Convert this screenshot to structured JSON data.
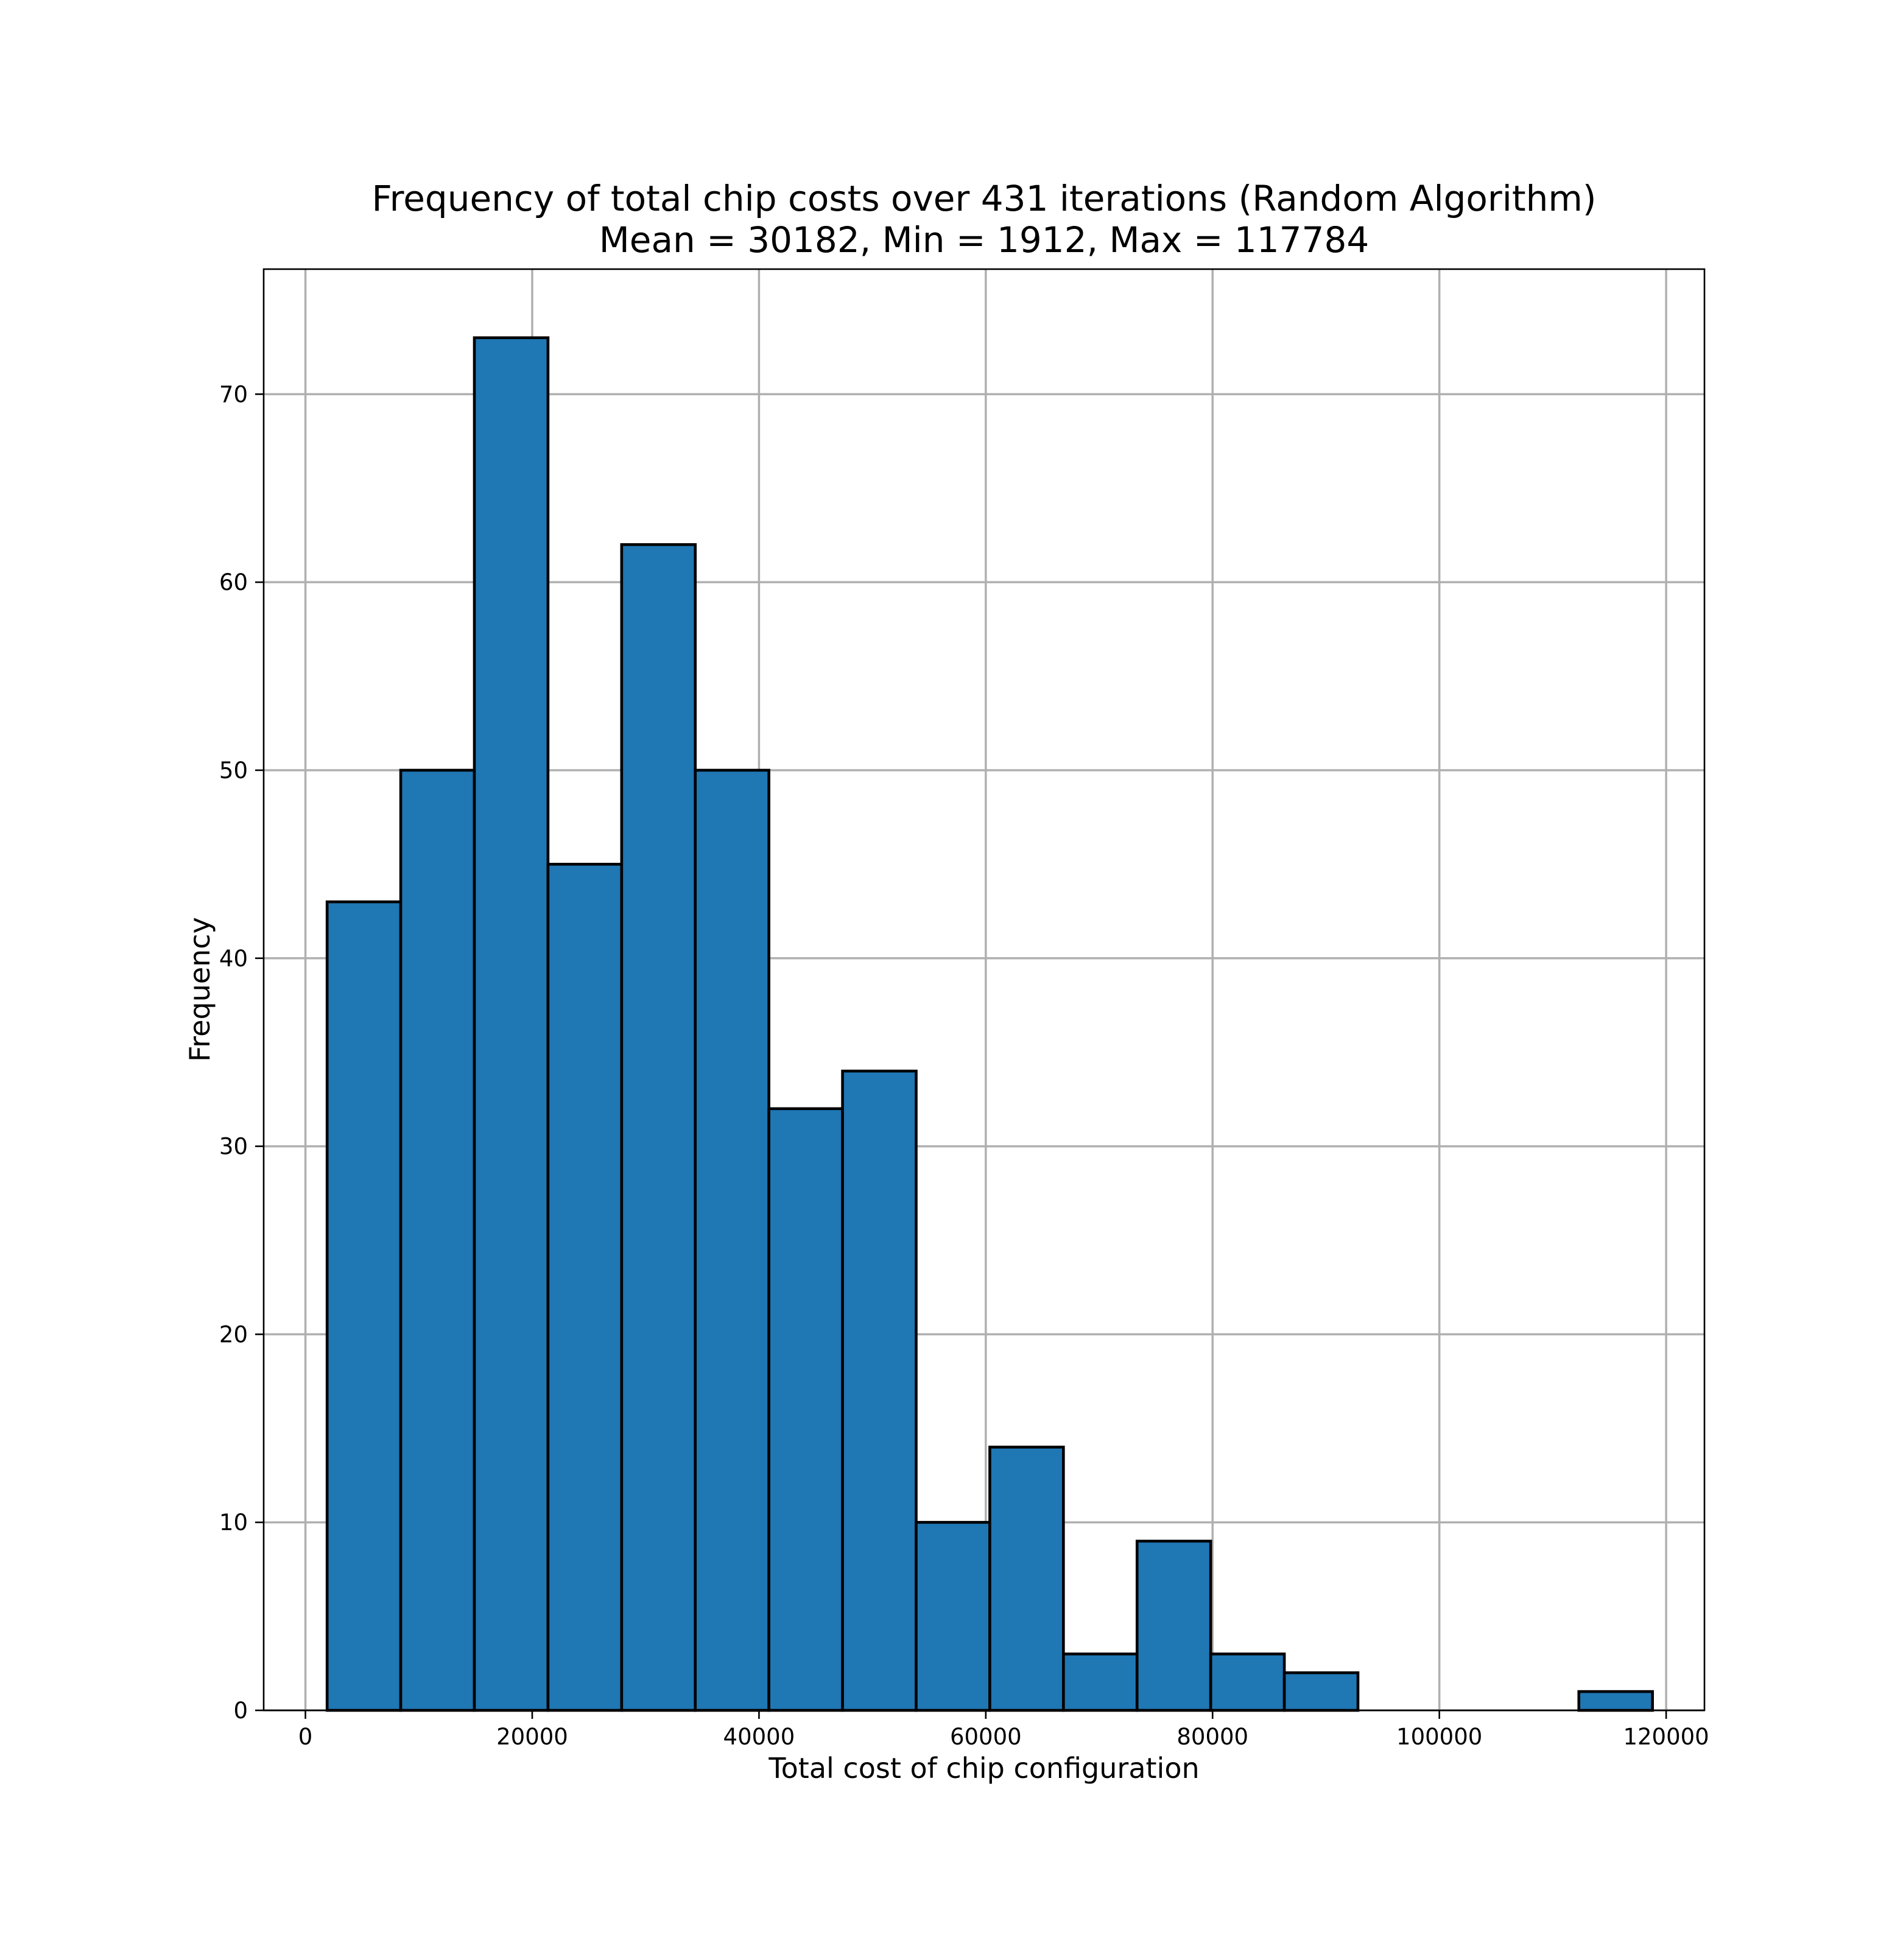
{
  "chart_data": {
    "type": "bar",
    "title": "Frequency of total chip costs over 431 iterations (Random Algorithm)",
    "subtitle": "Mean = 30182, Min = 1912, Max = 117784",
    "xlabel": "Total cost of chip configuration",
    "ylabel": "Frequency",
    "xlim": [
      -3682,
      123378
    ],
    "ylim": [
      0,
      76.65
    ],
    "x_ticks": [
      0,
      20000,
      40000,
      60000,
      80000,
      100000,
      120000
    ],
    "y_ticks": [
      0,
      10,
      20,
      30,
      40,
      50,
      60,
      70
    ],
    "x_tick_labels": [
      "0",
      "20000",
      "40000",
      "60000",
      "80000",
      "100000",
      "120000"
    ],
    "y_tick_labels": [
      "0",
      "10",
      "20",
      "30",
      "40",
      "50",
      "60",
      "70"
    ],
    "grid": true,
    "bar_color": "#1f77b4",
    "edge_color": "#000000",
    "bin_edges": [
      1912,
      8405.6,
      14899.1,
      21392.7,
      27886.2,
      34379.8,
      40873.3,
      47366.9,
      53860.4,
      60354,
      66847.6,
      73341.1,
      79834.7,
      86328.2,
      92821.8,
      99315.3,
      105808.9,
      112302.4,
      118796
    ],
    "values": [
      43,
      50,
      73,
      45,
      62,
      50,
      32,
      34,
      10,
      14,
      3,
      9,
      3,
      2,
      0,
      0,
      0,
      1
    ]
  }
}
